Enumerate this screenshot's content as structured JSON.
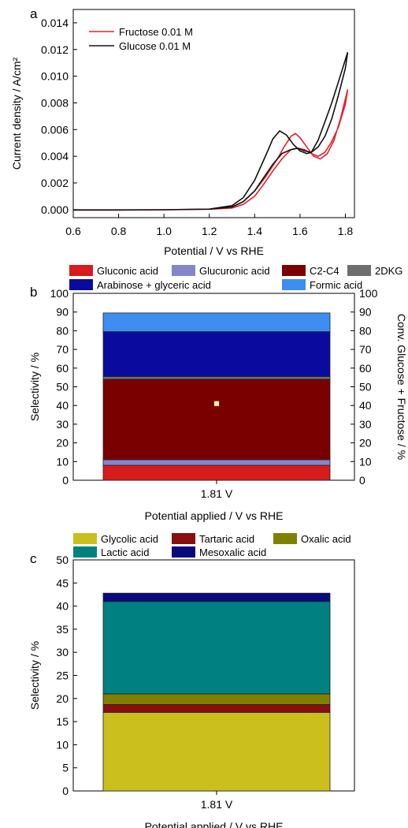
{
  "chart_data": [
    {
      "panel": "a",
      "type": "line",
      "xlabel": "Potential / V vs RHE",
      "ylabel": "Current density / A/cm²",
      "xlim": [
        0.6,
        1.84
      ],
      "ylim": [
        -0.0006,
        0.015
      ],
      "xticks": [
        "0.6",
        "0.8",
        "1.0",
        "1.2",
        "1.4",
        "1.6",
        "1.8"
      ],
      "yticks": [
        "0.000",
        "0.002",
        "0.004",
        "0.006",
        "0.008",
        "0.010",
        "0.012",
        "0.014"
      ],
      "legend_position": "top-left",
      "series": [
        {
          "name": "Fructose 0.01 M",
          "color": "#e8202a",
          "x": [
            0.6,
            0.8,
            1.0,
            1.2,
            1.3,
            1.35,
            1.4,
            1.45,
            1.5,
            1.53,
            1.56,
            1.58,
            1.6,
            1.63,
            1.66,
            1.69,
            1.72,
            1.75,
            1.78,
            1.81,
            1.8,
            1.77,
            1.74,
            1.71,
            1.68,
            1.65,
            1.62,
            1.59,
            1.56,
            1.52,
            1.48,
            1.44,
            1.4,
            1.35,
            1.3,
            1.2,
            1.0,
            0.8,
            0.6
          ],
          "y": [
            -3e-05,
            -3e-05,
            -1e-05,
            3e-05,
            0.0002,
            0.0006,
            0.0014,
            0.0025,
            0.0038,
            0.0047,
            0.0055,
            0.0057,
            0.0054,
            0.0047,
            0.004,
            0.0038,
            0.0042,
            0.0052,
            0.0069,
            0.009,
            0.0079,
            0.0062,
            0.0051,
            0.0043,
            0.004,
            0.0042,
            0.0045,
            0.0046,
            0.0045,
            0.0038,
            0.0029,
            0.0019,
            0.001,
            0.0004,
            0.00012,
            3e-05,
            -1e-05,
            -3e-05,
            -3e-05
          ]
        },
        {
          "name": "Glucose 0.01 M",
          "color": "#111111",
          "x": [
            0.6,
            0.8,
            1.0,
            1.2,
            1.3,
            1.35,
            1.4,
            1.45,
            1.48,
            1.51,
            1.54,
            1.57,
            1.6,
            1.63,
            1.65,
            1.68,
            1.71,
            1.74,
            1.77,
            1.81,
            1.8,
            1.77,
            1.74,
            1.71,
            1.68,
            1.65,
            1.62,
            1.59,
            1.56,
            1.52,
            1.48,
            1.44,
            1.4,
            1.35,
            1.3,
            1.2,
            1.0,
            0.8,
            0.6
          ],
          "y": [
            -2e-05,
            -2e-05,
            -1e-05,
            4e-05,
            0.0003,
            0.0009,
            0.0022,
            0.0041,
            0.0053,
            0.0059,
            0.0056,
            0.0049,
            0.0044,
            0.0042,
            0.0043,
            0.0052,
            0.0066,
            0.008,
            0.0096,
            0.0118,
            0.0106,
            0.0086,
            0.0068,
            0.0055,
            0.0047,
            0.0043,
            0.0044,
            0.0046,
            0.0045,
            0.0042,
            0.0034,
            0.0024,
            0.0014,
            0.0006,
            0.0002,
            4e-05,
            -1e-05,
            -2e-05,
            -2e-05
          ]
        }
      ]
    },
    {
      "panel": "b",
      "type": "bar",
      "stacked": true,
      "categories": [
        "1.81 V"
      ],
      "xlabel": "Potential applied / V vs RHE",
      "ylabel": "Selectivity / %",
      "y2label": "Conv. Glucose + Fructose / %",
      "ylim": [
        0,
        100
      ],
      "yticks": [
        "0",
        "10",
        "20",
        "30",
        "40",
        "50",
        "60",
        "70",
        "80",
        "90",
        "100"
      ],
      "legend_position": "top",
      "series": [
        {
          "name": "Gluconic acid",
          "color": "#d81b1b",
          "values": [
            8
          ]
        },
        {
          "name": "Glucuronic acid",
          "color": "#8585cc",
          "values": [
            3
          ]
        },
        {
          "name": "C2-C4",
          "color": "#7a0000",
          "values": [
            43
          ]
        },
        {
          "name": "2DKG",
          "color": "#6e6e6e",
          "values": [
            1.5
          ]
        },
        {
          "name": "Arabinose + glyceric acid",
          "color": "#0a0a9e",
          "values": [
            24
          ]
        },
        {
          "name": "Formic acid",
          "color": "#3d8ef0",
          "values": [
            10
          ]
        }
      ],
      "conversion_marker": {
        "value": 41,
        "color": "#ffffb0"
      }
    },
    {
      "panel": "c",
      "type": "bar",
      "stacked": true,
      "categories": [
        "1.81 V"
      ],
      "xlabel": "Potential applied / V vs RHE",
      "ylabel": "Selectivity / %",
      "ylim": [
        0,
        50
      ],
      "yticks": [
        "0",
        "5",
        "10",
        "15",
        "20",
        "25",
        "30",
        "35",
        "40",
        "45",
        "50"
      ],
      "legend_position": "top",
      "series": [
        {
          "name": "Glycolic acid",
          "color": "#cbbf1e",
          "values": [
            17
          ]
        },
        {
          "name": "Tartaric acid",
          "color": "#8a0e0e",
          "values": [
            1.7
          ]
        },
        {
          "name": "Oxalic acid",
          "color": "#808000",
          "values": [
            2.3
          ]
        },
        {
          "name": "Lactic acid",
          "color": "#008080",
          "values": [
            20
          ]
        },
        {
          "name": "Mesoxalic acid",
          "color": "#0a0a7e",
          "values": [
            1.8
          ]
        }
      ]
    }
  ],
  "panel_labels": [
    "a",
    "b",
    "c"
  ]
}
